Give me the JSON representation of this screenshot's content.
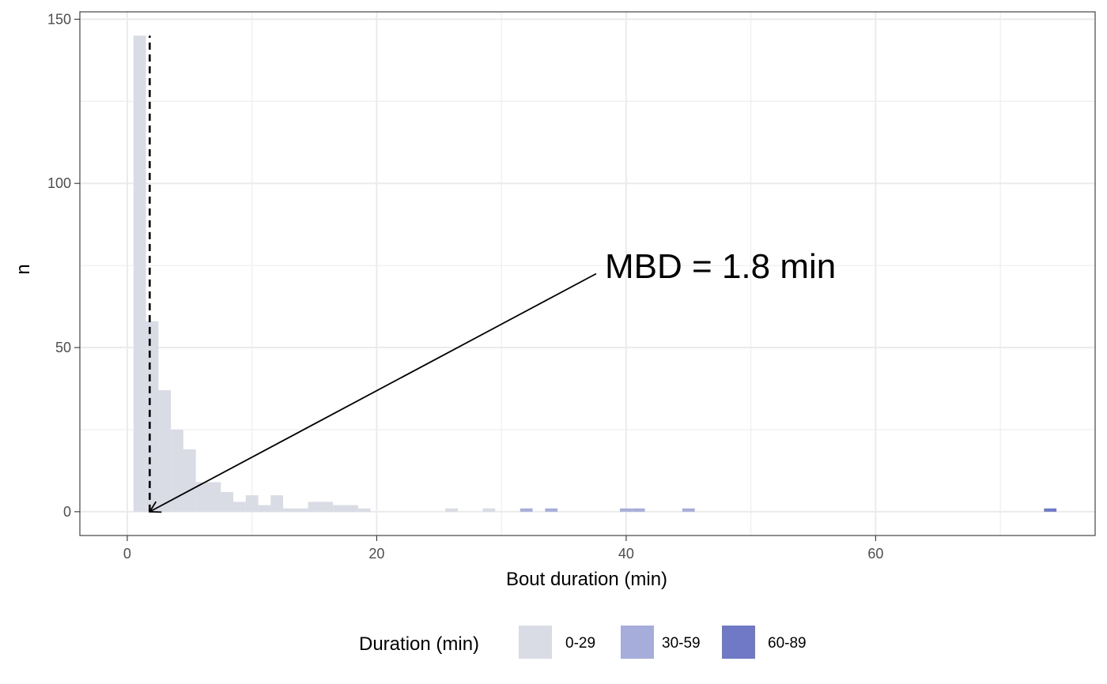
{
  "chart_data": {
    "type": "bar",
    "xlabel": "Bout duration (min)",
    "ylabel": "n",
    "xlim": [
      -3.8,
      77.6
    ],
    "ylim": [
      -7.25,
      152.25
    ],
    "x_ticks": [
      0,
      20,
      40,
      60
    ],
    "x_tick_labels": [
      "0",
      "20",
      "40",
      "60"
    ],
    "y_ticks": [
      0,
      50,
      100,
      150
    ],
    "y_tick_labels": [
      "0",
      "50",
      "100",
      "150"
    ],
    "grid": true,
    "bin_width": 1,
    "bins": [
      {
        "x": 1,
        "count": 145,
        "group": "0-29"
      },
      {
        "x": 2,
        "count": 58,
        "group": "0-29"
      },
      {
        "x": 3,
        "count": 37,
        "group": "0-29"
      },
      {
        "x": 4,
        "count": 25,
        "group": "0-29"
      },
      {
        "x": 5,
        "count": 19,
        "group": "0-29"
      },
      {
        "x": 6,
        "count": 9,
        "group": "0-29"
      },
      {
        "x": 7,
        "count": 9,
        "group": "0-29"
      },
      {
        "x": 8,
        "count": 6,
        "group": "0-29"
      },
      {
        "x": 9,
        "count": 3,
        "group": "0-29"
      },
      {
        "x": 10,
        "count": 5,
        "group": "0-29"
      },
      {
        "x": 11,
        "count": 2,
        "group": "0-29"
      },
      {
        "x": 12,
        "count": 5,
        "group": "0-29"
      },
      {
        "x": 13,
        "count": 1,
        "group": "0-29"
      },
      {
        "x": 14,
        "count": 1,
        "group": "0-29"
      },
      {
        "x": 15,
        "count": 3,
        "group": "0-29"
      },
      {
        "x": 16,
        "count": 3,
        "group": "0-29"
      },
      {
        "x": 17,
        "count": 2,
        "group": "0-29"
      },
      {
        "x": 18,
        "count": 2,
        "group": "0-29"
      },
      {
        "x": 19,
        "count": 1,
        "group": "0-29"
      },
      {
        "x": 26,
        "count": 1,
        "group": "0-29"
      },
      {
        "x": 29,
        "count": 1,
        "group": "0-29"
      },
      {
        "x": 32,
        "count": 1,
        "group": "30-59"
      },
      {
        "x": 34,
        "count": 1,
        "group": "30-59"
      },
      {
        "x": 40,
        "count": 1,
        "group": "30-59"
      },
      {
        "x": 41,
        "count": 1,
        "group": "30-59"
      },
      {
        "x": 45,
        "count": 1,
        "group": "30-59"
      },
      {
        "x": 74,
        "count": 1,
        "group": "60-89"
      }
    ],
    "reference_line": {
      "x": 1.8,
      "style": "dashed"
    },
    "annotation": {
      "text": "MBD = 1.8 min",
      "text_x": 37.6,
      "text_y": 75,
      "arrow_from": [
        37.6,
        72.5
      ],
      "arrow_to": [
        1.8,
        0
      ]
    },
    "legend": {
      "title": "Duration (min)",
      "position": "bottom",
      "entries": [
        {
          "label": "0-29",
          "color": "#d9dbe5"
        },
        {
          "label": "30-59",
          "color": "#a6adda"
        },
        {
          "label": "60-89",
          "color": "#6f79c5"
        }
      ]
    }
  }
}
